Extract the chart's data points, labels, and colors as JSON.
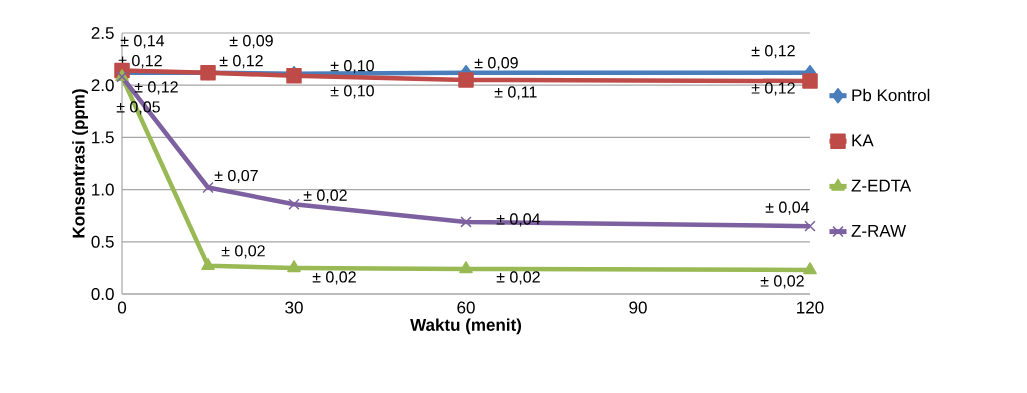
{
  "chart_data": {
    "type": "line",
    "xlabel": "Waktu (menit)",
    "ylabel": "Konsentrasi (ppm)",
    "x": [
      0,
      15,
      30,
      60,
      120
    ],
    "series": [
      {
        "name": "Pb Kontrol",
        "color": "#4a7ebb",
        "marker": "diamond",
        "values": [
          2.12,
          2.12,
          2.11,
          2.12,
          2.12
        ]
      },
      {
        "name": "KA",
        "color": "#be4b48",
        "marker": "square",
        "values": [
          2.14,
          2.12,
          2.09,
          2.05,
          2.04
        ]
      },
      {
        "name": "Z-EDTA",
        "color": "#98b954",
        "marker": "triangle",
        "values": [
          2.08,
          0.27,
          0.25,
          0.24,
          0.23
        ]
      },
      {
        "name": "Z-RAW",
        "color": "#7d60a0",
        "marker": "cross",
        "values": [
          2.08,
          1.02,
          0.86,
          0.69,
          0.65
        ]
      }
    ],
    "xlim": [
      0,
      120
    ],
    "xticks": [
      0,
      30,
      60,
      90,
      120
    ],
    "ylim": [
      0,
      2.5
    ],
    "yticks": [
      {
        "value": 0,
        "label": "0.0"
      },
      {
        "value": 0.5,
        "label": "0.5"
      },
      {
        "value": 1,
        "label": "1.0"
      },
      {
        "value": 1.5,
        "label": "1.5"
      },
      {
        "value": 2,
        "label": "2.0"
      },
      {
        "value": 2.5,
        "label": "2.5"
      }
    ],
    "grid": "y",
    "legend": "right",
    "line_style": "solid",
    "annotations": [
      {
        "text": "± 0,14",
        "x": 0,
        "y": 2.12
      },
      {
        "text": "± 0,12",
        "x": 0,
        "y": 2.14
      },
      {
        "text": "± 0,12",
        "x": 0,
        "y": 2.08
      },
      {
        "text": "± 0,05",
        "x": 0,
        "y": 2.08
      },
      {
        "text": "± 0,09",
        "x": 15,
        "y": 2.12
      },
      {
        "text": "± 0,12",
        "x": 15,
        "y": 2.12
      },
      {
        "text": "± 0,07",
        "x": 15,
        "y": 1.02
      },
      {
        "text": "± 0,02",
        "x": 15,
        "y": 0.27
      },
      {
        "text": "± 0,10",
        "x": 30,
        "y": 2.11
      },
      {
        "text": "±  0,10",
        "x": 30,
        "y": 2.09
      },
      {
        "text": "± 0,02",
        "x": 30,
        "y": 0.86
      },
      {
        "text": "± 0,02",
        "x": 30,
        "y": 0.25
      },
      {
        "text": "± 0,09",
        "x": 60,
        "y": 2.12
      },
      {
        "text": "± 0,11",
        "x": 60,
        "y": 2.05
      },
      {
        "text": "± 0,04",
        "x": 60,
        "y": 0.69
      },
      {
        "text": "± 0,02",
        "x": 60,
        "y": 0.24
      },
      {
        "text": "± 0,12",
        "x": 120,
        "y": 2.12
      },
      {
        "text": "± 0,12",
        "x": 120,
        "y": 2.04
      },
      {
        "text": "± 0,04",
        "x": 120,
        "y": 0.65
      },
      {
        "text": "± 0,02",
        "x": 120,
        "y": 0.23
      }
    ]
  }
}
